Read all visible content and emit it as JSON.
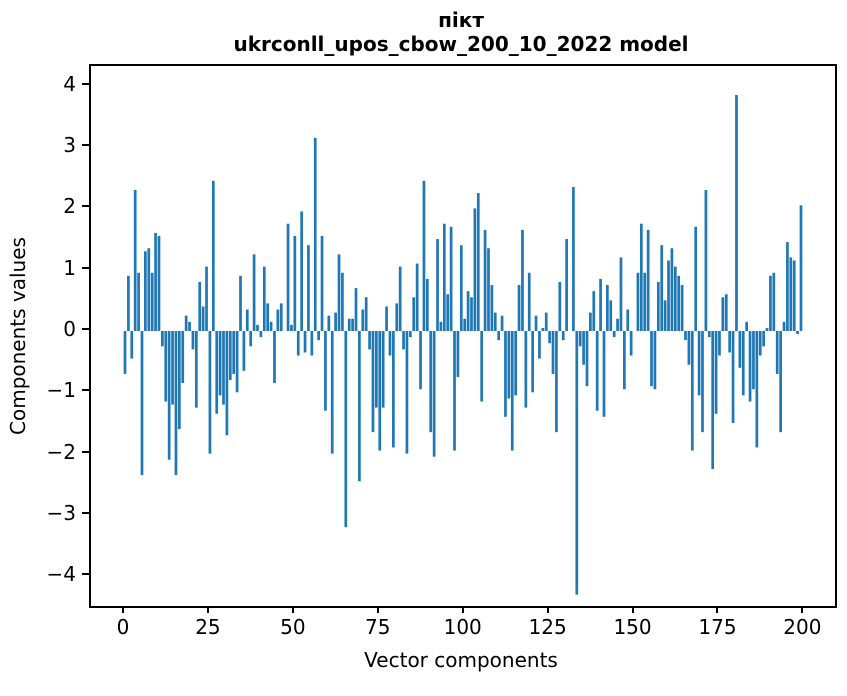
{
  "figure": {
    "background": "#ffffff"
  },
  "title": {
    "line1": "пікт",
    "line2": "ukrconll_upos_cbow_200_10_2022 model"
  },
  "chart_data": {
    "type": "bar",
    "title": "пікт",
    "subtitle": "ukrconll_upos_cbow_200_10_2022 model",
    "xlabel": "Vector components",
    "ylabel": "Components values",
    "bar_color": "#1f77b4",
    "axis_color": "#000000",
    "n_components": 200,
    "xticks": [
      0,
      25,
      50,
      75,
      100,
      125,
      150,
      175,
      200
    ],
    "yticks": [
      4,
      3,
      2,
      1,
      0,
      -1,
      -2,
      -3,
      -4
    ],
    "xlim": [
      -10,
      209
    ],
    "ylim": [
      -4.49,
      4.32
    ],
    "grid": false,
    "legend": null,
    "values": [
      -0.7,
      0.9,
      -0.45,
      2.3,
      0.95,
      -2.35,
      1.3,
      1.35,
      0.95,
      1.6,
      1.55,
      -0.25,
      -1.15,
      -2.1,
      -1.2,
      -2.35,
      -1.6,
      -0.85,
      0.25,
      0.15,
      -0.3,
      -1.25,
      0.8,
      0.4,
      1.05,
      -2.0,
      2.45,
      -1.35,
      -1.05,
      -1.2,
      -1.7,
      -0.8,
      -0.7,
      -1.0,
      0.9,
      -0.65,
      0.35,
      -0.25,
      1.25,
      0.1,
      -0.1,
      1.05,
      0.45,
      0.15,
      -0.85,
      0.35,
      0.45,
      0.0,
      1.75,
      0.1,
      1.55,
      -0.4,
      1.95,
      -0.35,
      1.4,
      -0.4,
      3.15,
      -0.15,
      1.55,
      -1.3,
      0.25,
      -2.0,
      0.3,
      1.25,
      0.95,
      -3.2,
      0.2,
      0.2,
      0.7,
      -2.45,
      0.35,
      0.55,
      -0.3,
      -1.65,
      -1.25,
      -1.95,
      -1.25,
      0.4,
      -0.4,
      -1.9,
      0.45,
      1.05,
      -0.3,
      -2.0,
      -0.1,
      0.55,
      1.1,
      -0.95,
      2.45,
      0.85,
      -1.65,
      -2.05,
      1.5,
      0.15,
      1.75,
      0.6,
      1.7,
      -1.95,
      -0.75,
      1.4,
      0.2,
      0.65,
      0.55,
      2.0,
      2.25,
      -1.15,
      1.65,
      1.35,
      0.75,
      0.3,
      -0.15,
      0.25,
      -1.4,
      -1.1,
      -1.95,
      -1.05,
      0.75,
      1.65,
      -1.25,
      0.95,
      -1.0,
      0.25,
      -0.45,
      0.05,
      0.3,
      -0.2,
      -0.7,
      -1.65,
      0.8,
      -0.15,
      1.5,
      0.0,
      2.35,
      -4.3,
      -0.25,
      -0.55,
      -0.9,
      0.3,
      0.65,
      -1.3,
      0.85,
      -1.4,
      0.75,
      0.5,
      -0.1,
      0.2,
      1.2,
      -0.95,
      0.35,
      -0.4,
      0.0,
      0.95,
      1.75,
      0.95,
      1.65,
      -0.9,
      -0.95,
      0.8,
      1.4,
      0.5,
      1.15,
      1.35,
      1.05,
      0.9,
      0.75,
      -0.15,
      -0.55,
      -1.95,
      1.7,
      -1.05,
      -1.65,
      2.3,
      -0.1,
      -2.25,
      -1.35,
      -0.4,
      0.55,
      0.6,
      -0.35,
      -1.5,
      3.85,
      -0.6,
      -1.05,
      0.15,
      -1.15,
      -0.95,
      -1.9,
      -0.4,
      -0.25,
      0.05,
      0.9,
      0.95,
      -0.7,
      -1.65,
      0.15,
      1.45,
      1.2,
      1.15,
      -0.05,
      2.05
    ]
  }
}
